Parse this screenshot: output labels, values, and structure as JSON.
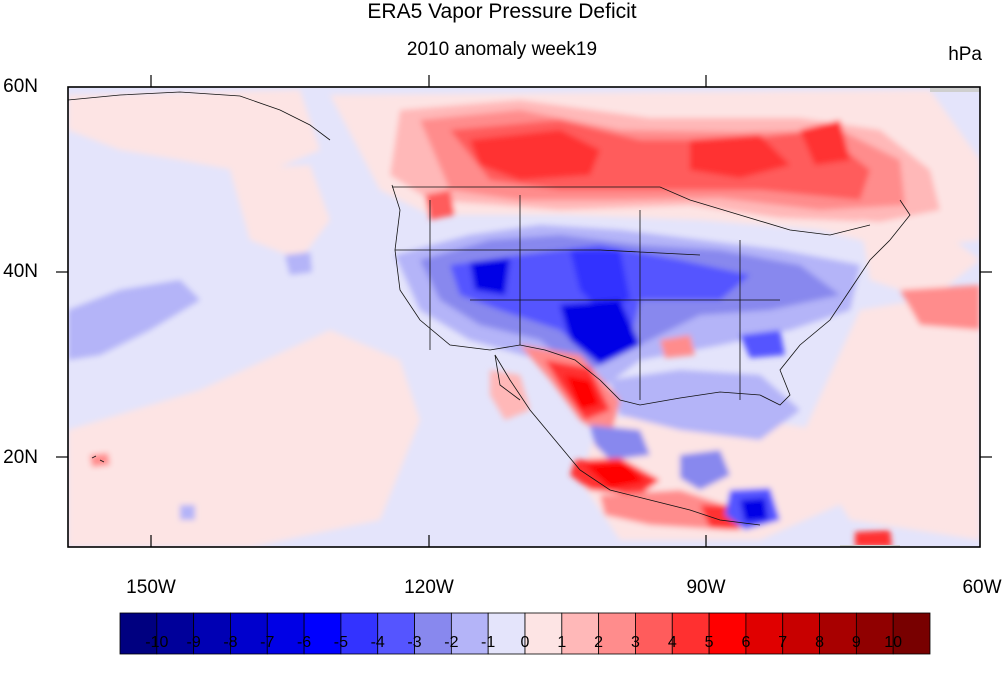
{
  "title": "ERA5 Vapor Pressure Deficit",
  "subtitle": "2010 anomaly week19",
  "units": "hPa",
  "lat_labels": [
    "60N",
    "40N",
    "20N"
  ],
  "lon_labels": [
    "150W",
    "120W",
    "90W",
    "60W"
  ],
  "colorbar": {
    "labels": [
      "-10",
      "-9",
      "-8",
      "-7",
      "-6",
      "-5",
      "-4",
      "-3",
      "-2",
      "-1",
      "0",
      "1",
      "2",
      "3",
      "4",
      "5",
      "6",
      "7",
      "8",
      "9",
      "10"
    ],
    "colors": [
      "#000080",
      "#00009a",
      "#0000b4",
      "#0000cd",
      "#0000e6",
      "#0000ff",
      "#3333ff",
      "#5555ff",
      "#8888ee",
      "#b4b4f8",
      "#e4e4fb",
      "#fde4e4",
      "#ffb8b8",
      "#ff8c8c",
      "#ff5c5c",
      "#ff3030",
      "#ff0000",
      "#e00000",
      "#c80000",
      "#a80000",
      "#900000",
      "#780000"
    ]
  },
  "anomaly_regions": [
    {
      "region": "Canadian Prairies",
      "sign": "positive"
    },
    {
      "region": "Central and Southwest US",
      "sign": "negative"
    },
    {
      "region": "Northwest Mexico",
      "sign": "positive"
    },
    {
      "region": "Southern Mexico",
      "sign": "positive"
    },
    {
      "region": "Central America",
      "sign": "negative"
    }
  ]
}
